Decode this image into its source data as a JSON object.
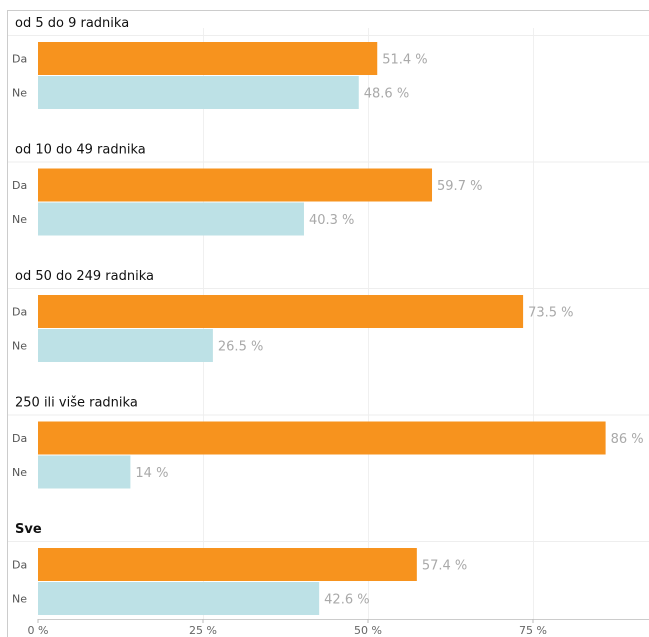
{
  "chart_data": {
    "type": "bar",
    "orientation": "horizontal",
    "categories": [
      "Da",
      "Ne"
    ],
    "groups": [
      {
        "title": "od 5 do 9 radnika",
        "values": [
          51.4,
          48.6
        ],
        "labels": [
          "51.4 %",
          "48.6 %"
        ]
      },
      {
        "title": "od 10 do 49 radnika",
        "values": [
          59.7,
          40.3
        ],
        "labels": [
          "59.7 %",
          "40.3 %"
        ]
      },
      {
        "title": "od 50 do 249 radnika",
        "values": [
          73.5,
          26.5
        ],
        "labels": [
          "73.5 %",
          "26.5 %"
        ]
      },
      {
        "title": "250 ili više radnika",
        "values": [
          86,
          14
        ],
        "labels": [
          "86 %",
          "14 %"
        ]
      },
      {
        "title": "Sve",
        "values": [
          57.4,
          42.6
        ],
        "labels": [
          "57.4 %",
          "42.6 %"
        ]
      }
    ],
    "x_ticks": [
      "0 %",
      "25 %",
      "50 %",
      "75 %"
    ],
    "xlim": [
      0,
      100
    ],
    "grid": true,
    "colors": {
      "Da": "#f7931e",
      "Ne": "#bde1e6"
    }
  }
}
